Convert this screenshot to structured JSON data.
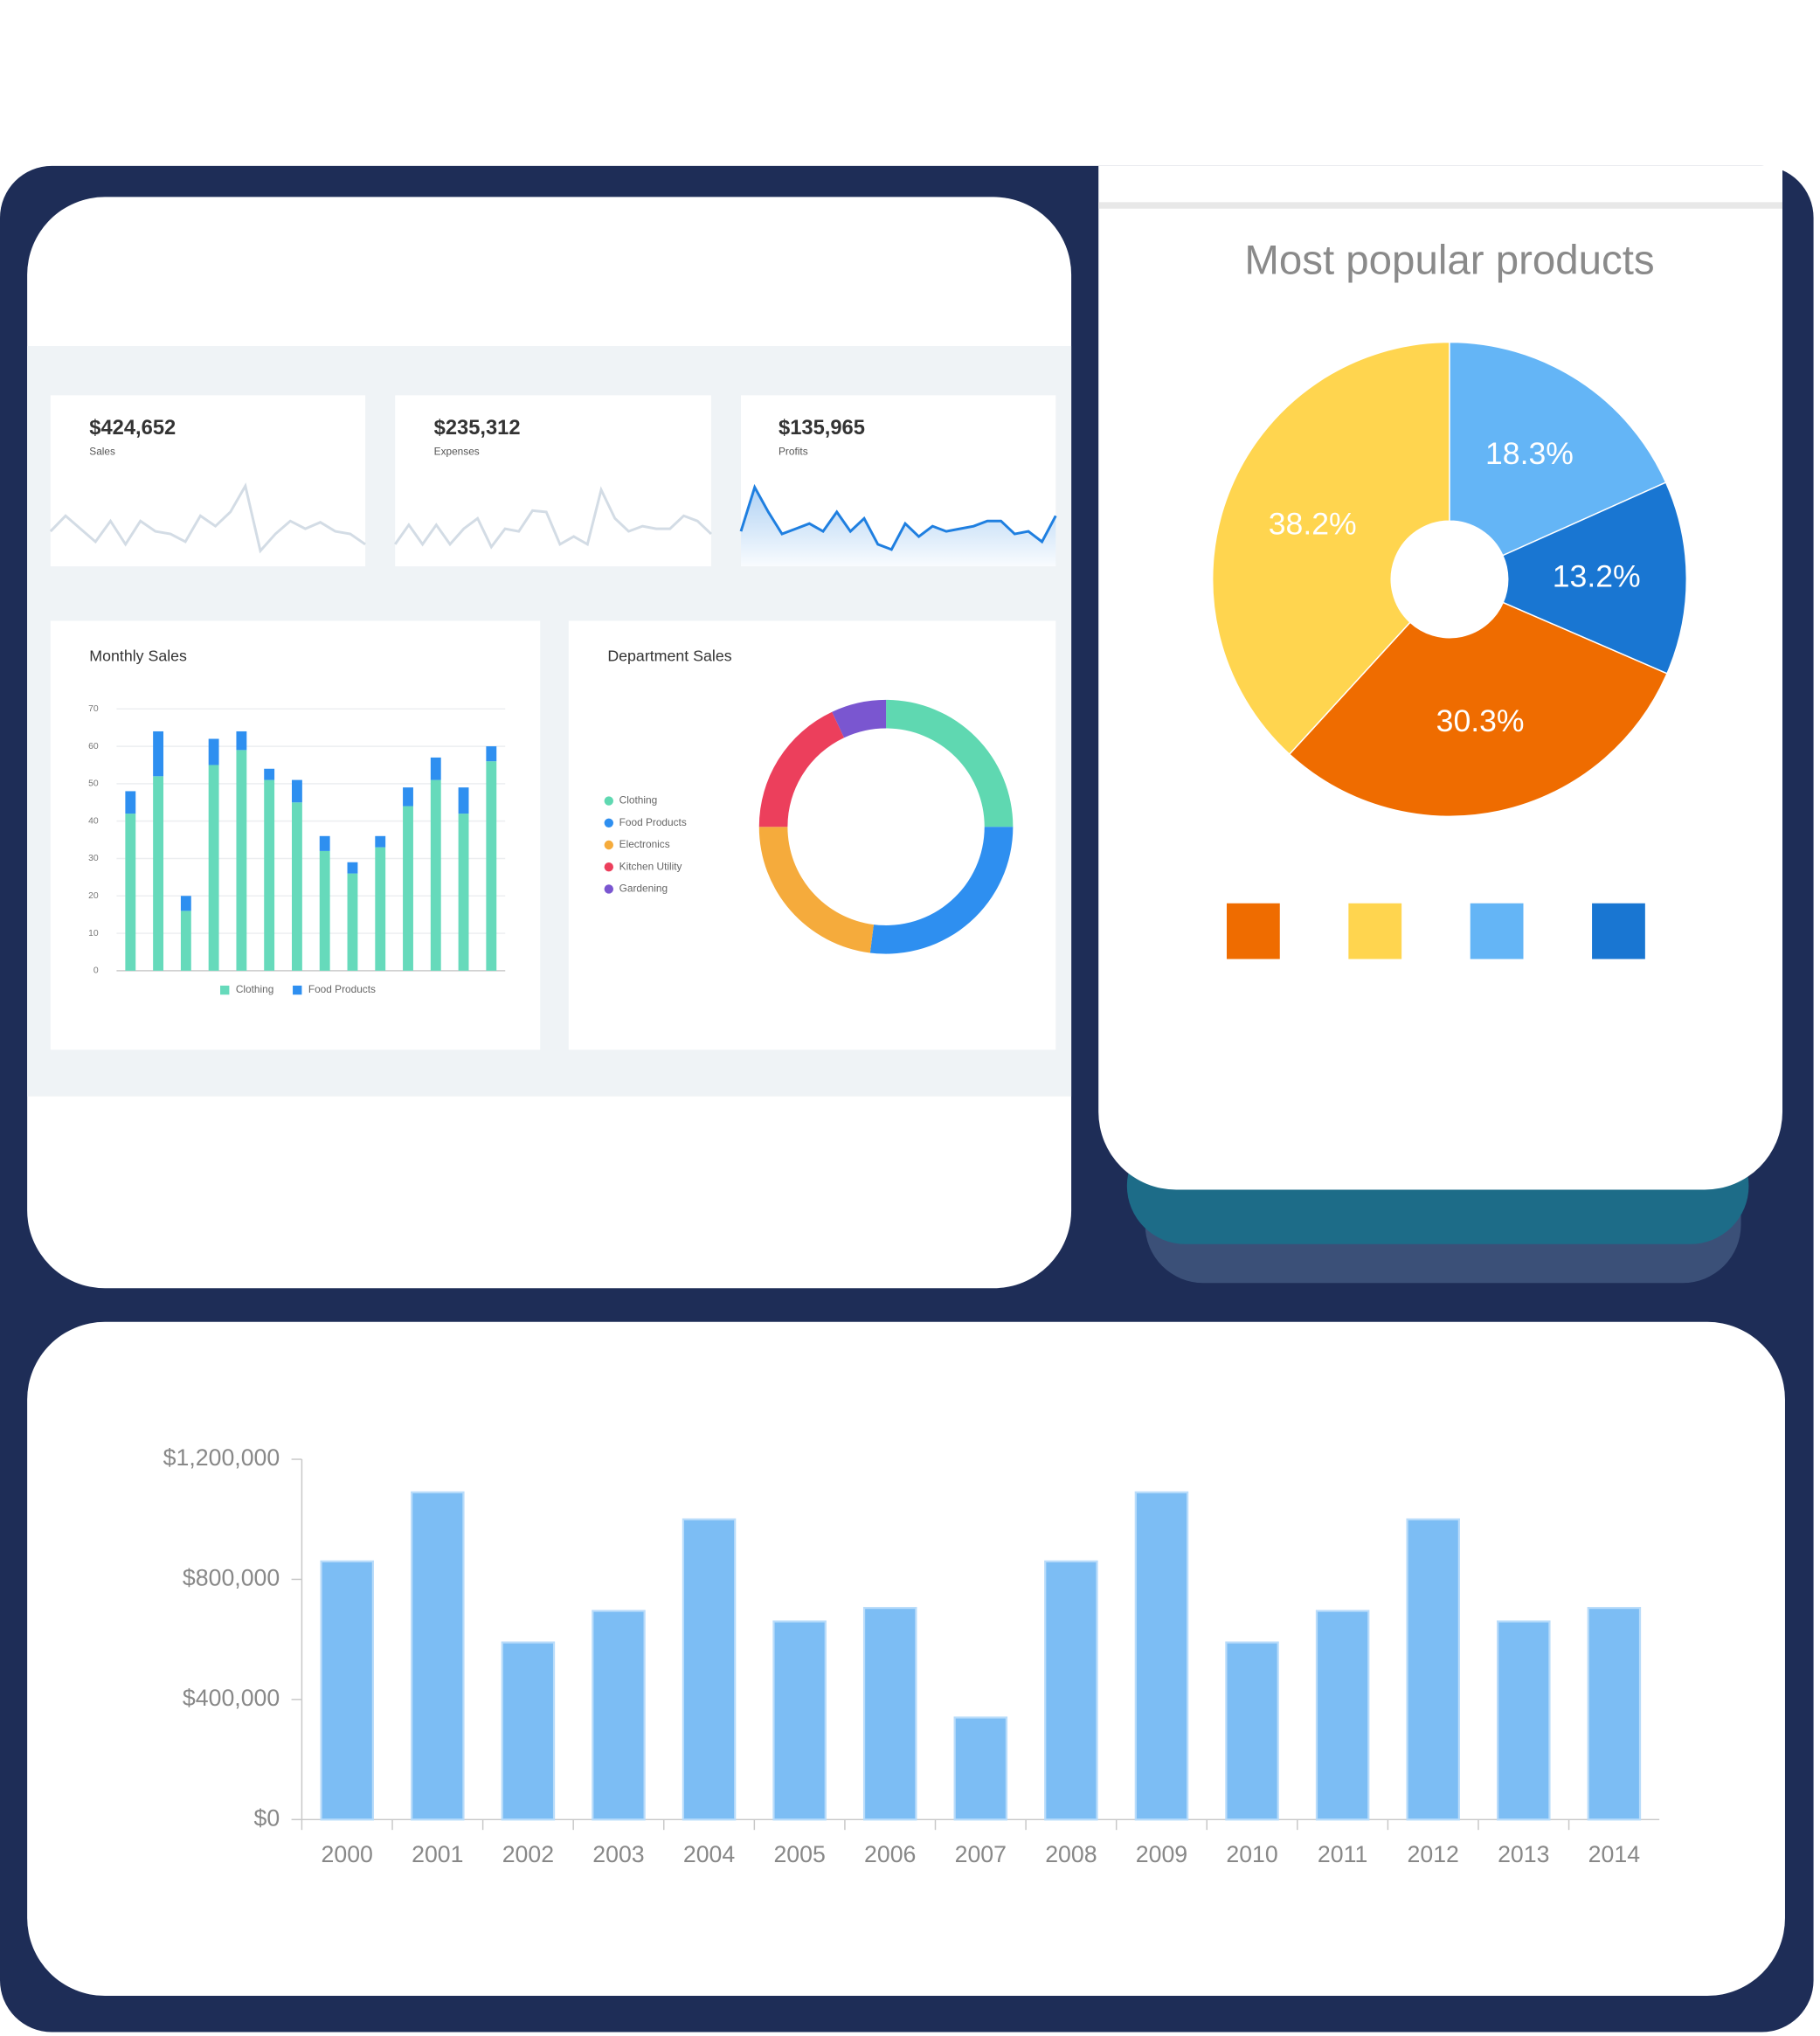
{
  "chart_data": [
    {
      "type": "line",
      "title": "$424,652",
      "subtitle": "Sales",
      "color": "#d3dce5",
      "values": [
        30,
        42,
        32,
        22,
        38,
        20,
        38,
        30,
        28,
        22,
        42,
        34,
        45,
        65,
        15,
        28,
        38,
        32,
        37,
        30,
        28,
        20
      ]
    },
    {
      "type": "line",
      "title": "$235,312",
      "subtitle": "Expenses",
      "color": "#d3dce5",
      "values": [
        20,
        35,
        20,
        35,
        20,
        32,
        40,
        18,
        32,
        30,
        46,
        45,
        20,
        26,
        20,
        62,
        40,
        30,
        34,
        32,
        32,
        42,
        38,
        28
      ]
    },
    {
      "type": "area",
      "title": "$135,965",
      "subtitle": "Profits",
      "color": "#1f7fe0",
      "values": [
        30,
        64,
        45,
        28,
        32,
        36,
        30,
        45,
        30,
        40,
        20,
        16,
        36,
        26,
        34,
        30,
        32,
        34,
        38,
        38,
        28,
        30,
        22,
        42
      ]
    },
    {
      "type": "bar",
      "stacked": true,
      "title": "Monthly Sales",
      "categories": [
        null,
        null,
        null,
        null,
        null,
        null,
        null,
        null,
        null,
        null,
        null,
        null,
        null,
        null
      ],
      "series": [
        {
          "name": "Clothing",
          "color": "#66dabb",
          "values": [
            42,
            52,
            16,
            55,
            59,
            51,
            45,
            32,
            26,
            33,
            44,
            51,
            42,
            56
          ]
        },
        {
          "name": "Food Products",
          "color": "#2e8ff0",
          "values": [
            6,
            12,
            4,
            7,
            5,
            3,
            6,
            4,
            3,
            3,
            5,
            6,
            7,
            4
          ]
        }
      ],
      "ylim": [
        0,
        70
      ],
      "yticks": [
        0,
        10,
        20,
        30,
        40,
        50,
        60,
        70
      ],
      "grid": true,
      "legend": "bottom"
    },
    {
      "type": "donut",
      "title": "Department Sales",
      "categories": [
        "Clothing",
        "Food Products",
        "Electronics",
        "Kitchen Utility",
        "Gardening"
      ],
      "values": [
        25,
        27,
        23,
        18,
        7
      ],
      "colors": [
        "#5fd8b1",
        "#2e8ff0",
        "#f5ab3c",
        "#ec3f5c",
        "#7a56d0"
      ],
      "legend": "left"
    },
    {
      "type": "pie",
      "title": "Most popular products",
      "values": [
        30.3,
        38.2,
        18.3,
        13.2
      ],
      "value_labels": [
        "30.3%",
        "38.2%",
        "18.3%",
        "13.2%"
      ],
      "colors": [
        "#ef6c00",
        "#ffd54f",
        "#64b5f6",
        "#1976d2"
      ],
      "legend": "bottom"
    },
    {
      "type": "bar",
      "categories": [
        "2000",
        "2001",
        "2002",
        "2003",
        "2004",
        "2005",
        "2006",
        "2007",
        "2008",
        "2009",
        "2010",
        "2011",
        "2012",
        "2013",
        "2014"
      ],
      "values": [
        860000,
        1090000,
        590000,
        695000,
        1000000,
        660000,
        705000,
        340000,
        860000,
        1090000,
        590000,
        695000,
        1000000,
        660000,
        705000
      ],
      "color": "#7cbdf4",
      "ylim": [
        0,
        1200000
      ],
      "yticks": [
        {
          "value": 0,
          "label": "$0"
        },
        {
          "value": 400000,
          "label": "$400,000"
        },
        {
          "value": 800000,
          "label": "$800,000"
        },
        {
          "value": 1200000,
          "label": "$1,200,000"
        }
      ],
      "grid": false
    }
  ]
}
